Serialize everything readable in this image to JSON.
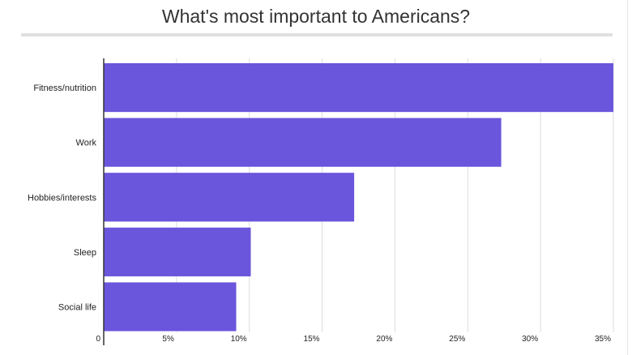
{
  "chart_data": {
    "type": "bar",
    "orientation": "horizontal",
    "title": "What's most important to Americans?",
    "categories": [
      "Fitness/nutrition",
      "Work",
      "Hobbies/interests",
      "Sleep",
      "Social life"
    ],
    "values": [
      35.5,
      27.3,
      17.2,
      10.1,
      9.1
    ],
    "xlim": [
      0,
      35
    ],
    "xticks": [
      0,
      5,
      10,
      15,
      20,
      25,
      30,
      35
    ],
    "xtick_labels": [
      "0",
      "5%",
      "10%",
      "15%",
      "20%",
      "25%",
      "30%",
      "35%"
    ],
    "grid": true,
    "bar_color": "#6a56dc"
  }
}
